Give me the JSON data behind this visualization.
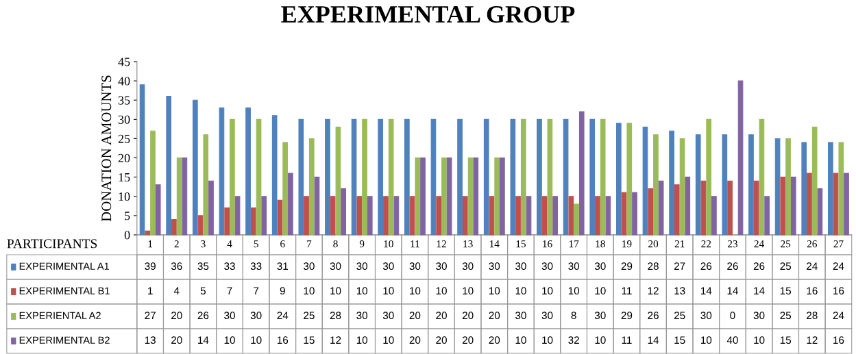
{
  "chart_data": {
    "type": "bar",
    "title": "EXPERIMENTAL GROUP",
    "ylabel": "DONATION AMOUNTS",
    "xlabel": "PARTICIPANTS",
    "categories": [
      "1",
      "2",
      "3",
      "4",
      "5",
      "6",
      "7",
      "8",
      "9",
      "10",
      "11",
      "12",
      "13",
      "14",
      "15",
      "16",
      "17",
      "18",
      "19",
      "20",
      "21",
      "22",
      "23",
      "24",
      "25",
      "26",
      "27"
    ],
    "series": [
      {
        "name": "EXPERIMENTAL A1",
        "color": "#4f81bd",
        "values": [
          39,
          36,
          35,
          33,
          33,
          31,
          30,
          30,
          30,
          30,
          30,
          30,
          30,
          30,
          30,
          30,
          30,
          30,
          29,
          28,
          27,
          26,
          26,
          26,
          25,
          24,
          24
        ]
      },
      {
        "name": "EXPERIMENTAL B1",
        "color": "#c0504d",
        "values": [
          1,
          4,
          5,
          7,
          7,
          9,
          10,
          10,
          10,
          10,
          10,
          10,
          10,
          10,
          10,
          10,
          10,
          10,
          11,
          12,
          13,
          14,
          14,
          14,
          15,
          16,
          16
        ]
      },
      {
        "name": "EXPERIENTAL A2",
        "color": "#9bbb59",
        "values": [
          27,
          20,
          26,
          30,
          30,
          24,
          25,
          28,
          30,
          30,
          20,
          20,
          20,
          20,
          30,
          30,
          8,
          30,
          29,
          26,
          25,
          30,
          0,
          30,
          25,
          28,
          24
        ]
      },
      {
        "name": "EXPERIMENTAL B2",
        "color": "#8064a2",
        "values": [
          13,
          20,
          14,
          10,
          10,
          16,
          15,
          12,
          10,
          10,
          20,
          20,
          20,
          20,
          10,
          10,
          32,
          10,
          11,
          14,
          15,
          10,
          40,
          10,
          15,
          12,
          16
        ]
      }
    ],
    "ylim": [
      0,
      45
    ],
    "yticks": [
      0,
      5,
      10,
      15,
      20,
      25,
      30,
      35,
      40,
      45
    ],
    "data_labels": true,
    "legend": "bottom left"
  }
}
